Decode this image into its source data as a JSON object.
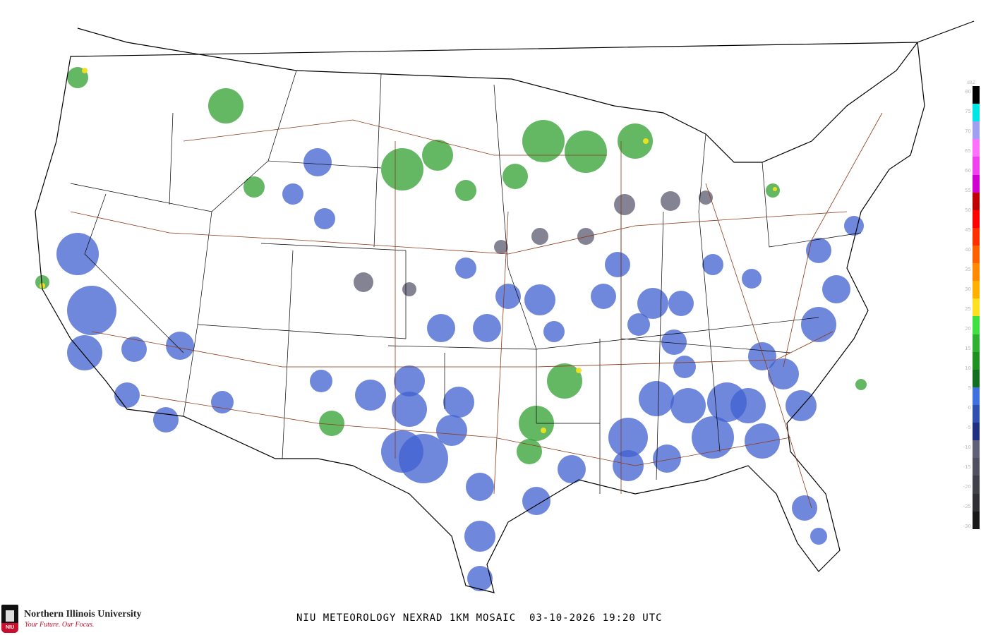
{
  "caption": "NIU METEOROLOGY NEXRAD 1KM MOSAIC  03-10-2026 19:20 UTC",
  "logo": {
    "name": "Northern Illinois University",
    "tagline": "Your Future. Our Focus.",
    "mark": "NIU"
  },
  "legend": {
    "unit": "dBZ",
    "labels": [
      "80",
      "75",
      "70",
      "65",
      "60",
      "55",
      "50",
      "45",
      "40",
      "35",
      "30",
      "25",
      "20",
      "15",
      "10",
      "5",
      "0",
      "-5",
      "-10",
      "-15",
      "-20",
      "-25",
      "-30"
    ],
    "colors": [
      "#000000",
      "#00e5e5",
      "#a0a0f0",
      "#ff70ff",
      "#f040f0",
      "#d000d0",
      "#c00000",
      "#ff0000",
      "#ff3000",
      "#ff6000",
      "#ff8a00",
      "#ffb000",
      "#ffe020",
      "#40e040",
      "#30b030",
      "#209020",
      "#107020",
      "#4070e0",
      "#3050b0",
      "#203080",
      "#606078",
      "#505060",
      "#404048",
      "#303034",
      "#181818"
    ]
  },
  "radar_colors": {
    "light": "#4060d0",
    "dark": "#203080",
    "gray": "#5a5a70",
    "green": "#30a030",
    "yellow": "#f0e020",
    "red": "#ff3000"
  },
  "map_colors": {
    "borders": "#000000",
    "highways": "#8b3a1a"
  }
}
